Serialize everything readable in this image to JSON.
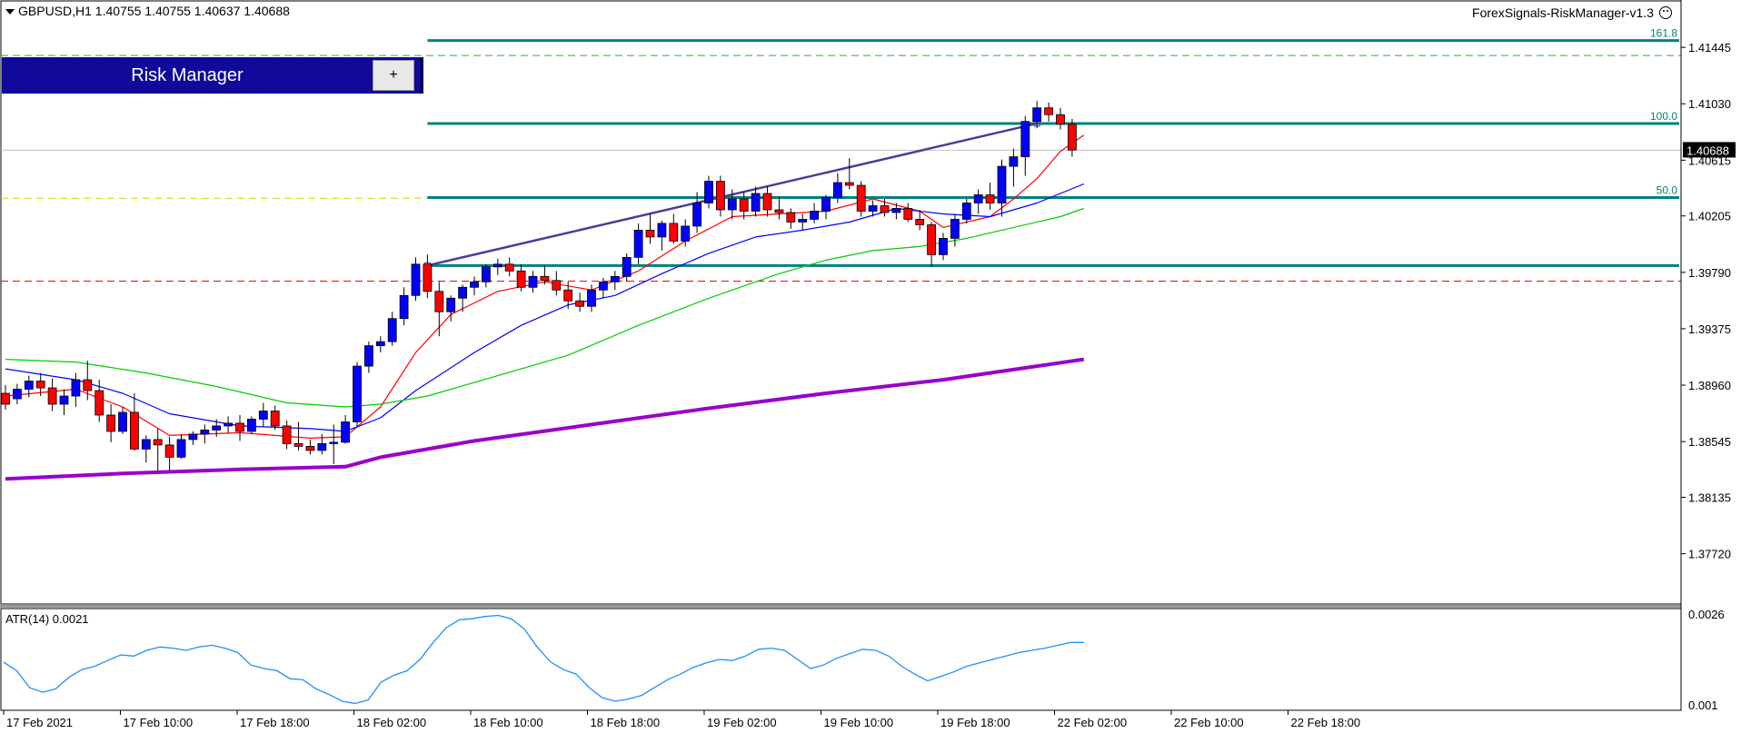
{
  "header": {
    "symbol_info": "GBPUSD,H1  1.40755 1.40755 1.40637 1.40688",
    "ea_name": "ForexSignals-RiskManager-v1.3"
  },
  "risk_manager": {
    "title": "Risk Manager",
    "plus_label": "+"
  },
  "atr": {
    "label": "ATR(14) 0.0021"
  },
  "colors": {
    "bull_candle": "#0000ff",
    "bear_candle": "#ff0000",
    "ma_red": "#ff0000",
    "ma_blue": "#0000ff",
    "ma_green": "#00cc00",
    "ma_purple": "#9900cc",
    "fib_line": "#008080",
    "trend_line": "#4b3c99",
    "atr_line": "#1e90ff",
    "upper_dashed": "#33aa33",
    "lower_dashed": "#ff0000",
    "mid_dashed": "#d8d800"
  },
  "chart_data": [
    {
      "type": "candlestick",
      "symbol": "GBPUSD",
      "timeframe": "H1",
      "ylim": [
        1.3735,
        1.4178
      ],
      "y_ticks": [
        "1.41445",
        "1.41030",
        "1.40615",
        "1.40205",
        "1.39790",
        "1.39375",
        "1.38960",
        "1.38545",
        "1.38135",
        "1.37720"
      ],
      "x_ticks": [
        "17 Feb 2021",
        "17 Feb 10:00",
        "17 Feb 18:00",
        "18 Feb 02:00",
        "18 Feb 10:00",
        "18 Feb 18:00",
        "19 Feb 02:00",
        "19 Feb 10:00",
        "19 Feb 18:00",
        "22 Feb 02:00",
        "22 Feb 10:00",
        "22 Feb 18:00"
      ],
      "last_price": "1.40688",
      "candles_ohlc": [
        [
          1.389,
          1.3896,
          1.3878,
          1.3882
        ],
        [
          1.3886,
          1.3897,
          1.3882,
          1.3893
        ],
        [
          1.3893,
          1.3903,
          1.3887,
          1.3899
        ],
        [
          1.3899,
          1.3905,
          1.3888,
          1.3894
        ],
        [
          1.3894,
          1.3901,
          1.3877,
          1.3882
        ],
        [
          1.3882,
          1.3893,
          1.3874,
          1.3888
        ],
        [
          1.3888,
          1.3905,
          1.388,
          1.39
        ],
        [
          1.39,
          1.3914,
          1.3885,
          1.3892
        ],
        [
          1.3892,
          1.39,
          1.3869,
          1.3874
        ],
        [
          1.3874,
          1.3882,
          1.3854,
          1.3862
        ],
        [
          1.3862,
          1.388,
          1.386,
          1.3876
        ],
        [
          1.3876,
          1.389,
          1.3848,
          1.3849
        ],
        [
          1.3849,
          1.3859,
          1.3839,
          1.3856
        ],
        [
          1.3856,
          1.3864,
          1.3833,
          1.3852
        ],
        [
          1.3852,
          1.3858,
          1.3833,
          1.3843
        ],
        [
          1.3843,
          1.386,
          1.3842,
          1.3856
        ],
        [
          1.3856,
          1.3862,
          1.3852,
          1.386
        ],
        [
          1.386,
          1.3867,
          1.3853,
          1.3863
        ],
        [
          1.3863,
          1.3871,
          1.3858,
          1.3866
        ],
        [
          1.3866,
          1.3873,
          1.3861,
          1.3868
        ],
        [
          1.3868,
          1.3874,
          1.3855,
          1.3862
        ],
        [
          1.3862,
          1.3873,
          1.386,
          1.3871
        ],
        [
          1.3871,
          1.3883,
          1.3865,
          1.3877
        ],
        [
          1.3877,
          1.3881,
          1.3863,
          1.3866
        ],
        [
          1.3866,
          1.387,
          1.3849,
          1.3853
        ],
        [
          1.3853,
          1.3869,
          1.3848,
          1.3851
        ],
        [
          1.3851,
          1.3856,
          1.3845,
          1.3848
        ],
        [
          1.3848,
          1.386,
          1.3845,
          1.3853
        ],
        [
          1.3853,
          1.3867,
          1.3838,
          1.3854
        ],
        [
          1.3854,
          1.3874,
          1.3853,
          1.3869
        ],
        [
          1.3869,
          1.3913,
          1.3865,
          1.391
        ],
        [
          1.391,
          1.3928,
          1.3905,
          1.3925
        ],
        [
          1.3925,
          1.3932,
          1.392,
          1.3928
        ],
        [
          1.3928,
          1.395,
          1.3925,
          1.3945
        ],
        [
          1.3945,
          1.3968,
          1.394,
          1.3962
        ],
        [
          1.3962,
          1.399,
          1.3958,
          1.3985
        ],
        [
          1.3985,
          1.3992,
          1.396,
          1.3965
        ],
        [
          1.3965,
          1.3972,
          1.3932,
          1.395
        ],
        [
          1.395,
          1.3962,
          1.3943,
          1.396
        ],
        [
          1.396,
          1.397,
          1.395,
          1.3968
        ],
        [
          1.3968,
          1.3976,
          1.3962,
          1.3972
        ],
        [
          1.3972,
          1.3985,
          1.3968,
          1.3983
        ],
        [
          1.3983,
          1.3989,
          1.3977,
          1.3985
        ],
        [
          1.3985,
          1.399,
          1.3976,
          1.398
        ],
        [
          1.398,
          1.3985,
          1.3965,
          1.3968
        ],
        [
          1.3968,
          1.398,
          1.3964,
          1.3976
        ],
        [
          1.3976,
          1.3984,
          1.397,
          1.3973
        ],
        [
          1.3973,
          1.398,
          1.3962,
          1.3966
        ],
        [
          1.3966,
          1.3972,
          1.3952,
          1.3958
        ],
        [
          1.3958,
          1.3964,
          1.395,
          1.3954
        ],
        [
          1.3954,
          1.397,
          1.395,
          1.3966
        ],
        [
          1.3966,
          1.3975,
          1.396,
          1.3972
        ],
        [
          1.3972,
          1.398,
          1.3966,
          1.3976
        ],
        [
          1.3976,
          1.3993,
          1.3972,
          1.399
        ],
        [
          1.399,
          1.4015,
          1.3985,
          1.401
        ],
        [
          1.401,
          1.4022,
          1.4,
          1.4005
        ],
        [
          1.4005,
          1.4017,
          1.3995,
          1.4015
        ],
        [
          1.4015,
          1.4022,
          1.4,
          1.4002
        ],
        [
          1.4002,
          1.4018,
          1.3998,
          1.4013
        ],
        [
          1.4013,
          1.4038,
          1.4008,
          1.403
        ],
        [
          1.403,
          1.405,
          1.4026,
          1.4046
        ],
        [
          1.4046,
          1.405,
          1.402,
          1.4025
        ],
        [
          1.4025,
          1.404,
          1.4018,
          1.4033
        ],
        [
          1.4033,
          1.4038,
          1.4018,
          1.4024
        ],
        [
          1.4024,
          1.4042,
          1.402,
          1.4037
        ],
        [
          1.4037,
          1.4042,
          1.402,
          1.4025
        ],
        [
          1.4025,
          1.4035,
          1.4018,
          1.4023
        ],
        [
          1.4023,
          1.4026,
          1.4011,
          1.4016
        ],
        [
          1.4016,
          1.4022,
          1.401,
          1.4018
        ],
        [
          1.4018,
          1.403,
          1.4015,
          1.4024
        ],
        [
          1.4024,
          1.4036,
          1.4018,
          1.4034
        ],
        [
          1.4034,
          1.4052,
          1.403,
          1.4045
        ],
        [
          1.4045,
          1.4063,
          1.404,
          1.4043
        ],
        [
          1.4043,
          1.4046,
          1.402,
          1.4024
        ],
        [
          1.4024,
          1.4032,
          1.402,
          1.4028
        ],
        [
          1.4028,
          1.4033,
          1.402,
          1.4023
        ],
        [
          1.4023,
          1.403,
          1.4018,
          1.4026
        ],
        [
          1.4026,
          1.403,
          1.4016,
          1.4018
        ],
        [
          1.4018,
          1.4025,
          1.401,
          1.4014
        ],
        [
          1.4014,
          1.4016,
          1.3983,
          1.3992
        ],
        [
          1.3992,
          1.4008,
          1.3988,
          1.4004
        ],
        [
          1.4004,
          1.4022,
          1.3998,
          1.4018
        ],
        [
          1.4018,
          1.4033,
          1.4015,
          1.403
        ],
        [
          1.403,
          1.404,
          1.4022,
          1.4036
        ],
        [
          1.4036,
          1.4045,
          1.4025,
          1.403
        ],
        [
          1.403,
          1.4062,
          1.402,
          1.4057
        ],
        [
          1.4057,
          1.407,
          1.4042,
          1.4064
        ],
        [
          1.4064,
          1.4094,
          1.405,
          1.409
        ],
        [
          1.409,
          1.4105,
          1.4085,
          1.41
        ],
        [
          1.41,
          1.4104,
          1.409,
          1.4095
        ],
        [
          1.4095,
          1.41,
          1.4084,
          1.4088
        ],
        [
          1.4088,
          1.4092,
          1.4064,
          1.4069
        ]
      ],
      "moving_averages": [
        {
          "name": "red",
          "points": [
            [
              0,
              1.3888
            ],
            [
              6,
              1.3893
            ],
            [
              10,
              1.388
            ],
            [
              14,
              1.3859
            ],
            [
              20,
              1.3861
            ],
            [
              26,
              1.3857
            ],
            [
              29,
              1.3858
            ],
            [
              32,
              1.388
            ],
            [
              35,
              1.392
            ],
            [
              38,
              1.3948
            ],
            [
              42,
              1.3965
            ],
            [
              46,
              1.3972
            ],
            [
              50,
              1.3966
            ],
            [
              54,
              1.398
            ],
            [
              58,
              1.4002
            ],
            [
              62,
              1.402
            ],
            [
              66,
              1.4022
            ],
            [
              70,
              1.4024
            ],
            [
              74,
              1.4033
            ],
            [
              78,
              1.4024
            ],
            [
              80,
              1.4012
            ],
            [
              84,
              1.402
            ],
            [
              86,
              1.4033
            ],
            [
              88,
              1.4048
            ],
            [
              90,
              1.4068
            ],
            [
              92,
              1.408
            ]
          ]
        },
        {
          "name": "blue",
          "points": [
            [
              0,
              1.3908
            ],
            [
              6,
              1.39
            ],
            [
              10,
              1.389
            ],
            [
              14,
              1.3875
            ],
            [
              20,
              1.3866
            ],
            [
              26,
              1.3864
            ],
            [
              29,
              1.3862
            ],
            [
              32,
              1.3872
            ],
            [
              35,
              1.3892
            ],
            [
              40,
              1.392
            ],
            [
              44,
              1.394
            ],
            [
              48,
              1.3955
            ],
            [
              52,
              1.3962
            ],
            [
              56,
              1.3978
            ],
            [
              60,
              1.3993
            ],
            [
              64,
              1.4005
            ],
            [
              68,
              1.401
            ],
            [
              72,
              1.4016
            ],
            [
              76,
              1.4026
            ],
            [
              80,
              1.4022
            ],
            [
              84,
              1.402
            ],
            [
              88,
              1.403
            ],
            [
              92,
              1.4044
            ]
          ]
        },
        {
          "name": "green",
          "points": [
            [
              0,
              1.3915
            ],
            [
              6,
              1.3913
            ],
            [
              12,
              1.3905
            ],
            [
              18,
              1.3895
            ],
            [
              24,
              1.3883
            ],
            [
              29,
              1.388
            ],
            [
              32,
              1.3882
            ],
            [
              36,
              1.3888
            ],
            [
              42,
              1.3903
            ],
            [
              48,
              1.3918
            ],
            [
              54,
              1.394
            ],
            [
              60,
              1.396
            ],
            [
              66,
              1.3978
            ],
            [
              70,
              1.3988
            ],
            [
              74,
              1.3995
            ],
            [
              78,
              1.3998
            ],
            [
              82,
              1.4004
            ],
            [
              86,
              1.4012
            ],
            [
              90,
              1.402
            ],
            [
              92,
              1.4026
            ]
          ]
        },
        {
          "name": "purple",
          "points": [
            [
              0,
              1.3827
            ],
            [
              10,
              1.3831
            ],
            [
              20,
              1.3834
            ],
            [
              29,
              1.3836
            ],
            [
              32,
              1.3843
            ],
            [
              40,
              1.3855
            ],
            [
              50,
              1.3867
            ],
            [
              60,
              1.3879
            ],
            [
              70,
              1.389
            ],
            [
              80,
              1.39
            ],
            [
              88,
              1.391
            ],
            [
              92,
              1.3915
            ]
          ]
        }
      ],
      "horizontal_lines": [
        {
          "name": "upper-dashed",
          "price": 1.41385,
          "style": "dashed"
        },
        {
          "name": "mid-dashed",
          "price": 1.40335,
          "style": "dashed"
        },
        {
          "name": "lower-dashed",
          "price": 1.39725,
          "style": "dashed"
        },
        {
          "name": "last-price",
          "price": 1.40688,
          "style": "solid"
        }
      ],
      "fibonacci": {
        "from_bar": 36,
        "to_bar": 88,
        "levels": [
          {
            "label": "161.8",
            "price": 1.41495
          },
          {
            "label": "100.0",
            "price": 1.40885
          },
          {
            "label": "50.0",
            "price": 1.4034
          },
          {
            "label": "",
            "price": 1.3984
          }
        ]
      },
      "trend_line": {
        "from": [
          36,
          1.3984
        ],
        "to": [
          88,
          1.40885
        ]
      }
    },
    {
      "type": "line",
      "name": "ATR(14)",
      "ylim": [
        0.0009,
        0.0027
      ],
      "y_ticks": [
        "0.0026",
        "0.001"
      ],
      "values": [
        0.00175,
        0.0016,
        0.0013,
        0.00122,
        0.00128,
        0.00148,
        0.00162,
        0.00168,
        0.00178,
        0.00188,
        0.00186,
        0.00196,
        0.00202,
        0.002,
        0.00196,
        0.00202,
        0.00205,
        0.002,
        0.00192,
        0.0017,
        0.00164,
        0.0016,
        0.00146,
        0.00144,
        0.00128,
        0.00118,
        0.00106,
        0.00102,
        0.00108,
        0.0014,
        0.00152,
        0.0016,
        0.0018,
        0.0021,
        0.00236,
        0.0025,
        0.00252,
        0.00256,
        0.00258,
        0.00252,
        0.00234,
        0.00202,
        0.00176,
        0.00162,
        0.00154,
        0.0013,
        0.00112,
        0.00106,
        0.0011,
        0.00116,
        0.0013,
        0.00144,
        0.00154,
        0.00166,
        0.00174,
        0.0018,
        0.00178,
        0.00186,
        0.00198,
        0.002,
        0.00196,
        0.0018,
        0.00164,
        0.0017,
        0.00182,
        0.0019,
        0.00198,
        0.00196,
        0.00186,
        0.00168,
        0.00154,
        0.00142,
        0.0015,
        0.00158,
        0.00168,
        0.00174,
        0.0018,
        0.00186,
        0.00192,
        0.00196,
        0.002,
        0.00205,
        0.0021,
        0.0021
      ]
    }
  ]
}
